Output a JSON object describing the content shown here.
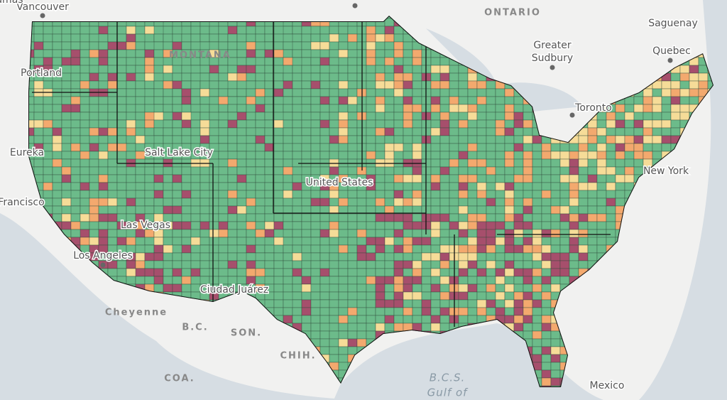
{
  "map": {
    "place_labels": [
      "Vancouver",
      "ONTARIO",
      "Saguenay",
      "Quebec",
      "Greater",
      "Sudbury",
      "Toronto",
      "New York",
      "Portland",
      "Eureka",
      "Salt Lake City",
      "Francisco",
      "Las Vegas",
      "Los Angeles",
      "Ciudad Juárez",
      "United States",
      "MONTANA",
      "Cheyenne",
      "B.C.",
      "SON.",
      "CHIH.",
      "COA.",
      "B.C.S.",
      "Gulf of",
      "Mexico",
      "Bahamas"
    ]
  }
}
